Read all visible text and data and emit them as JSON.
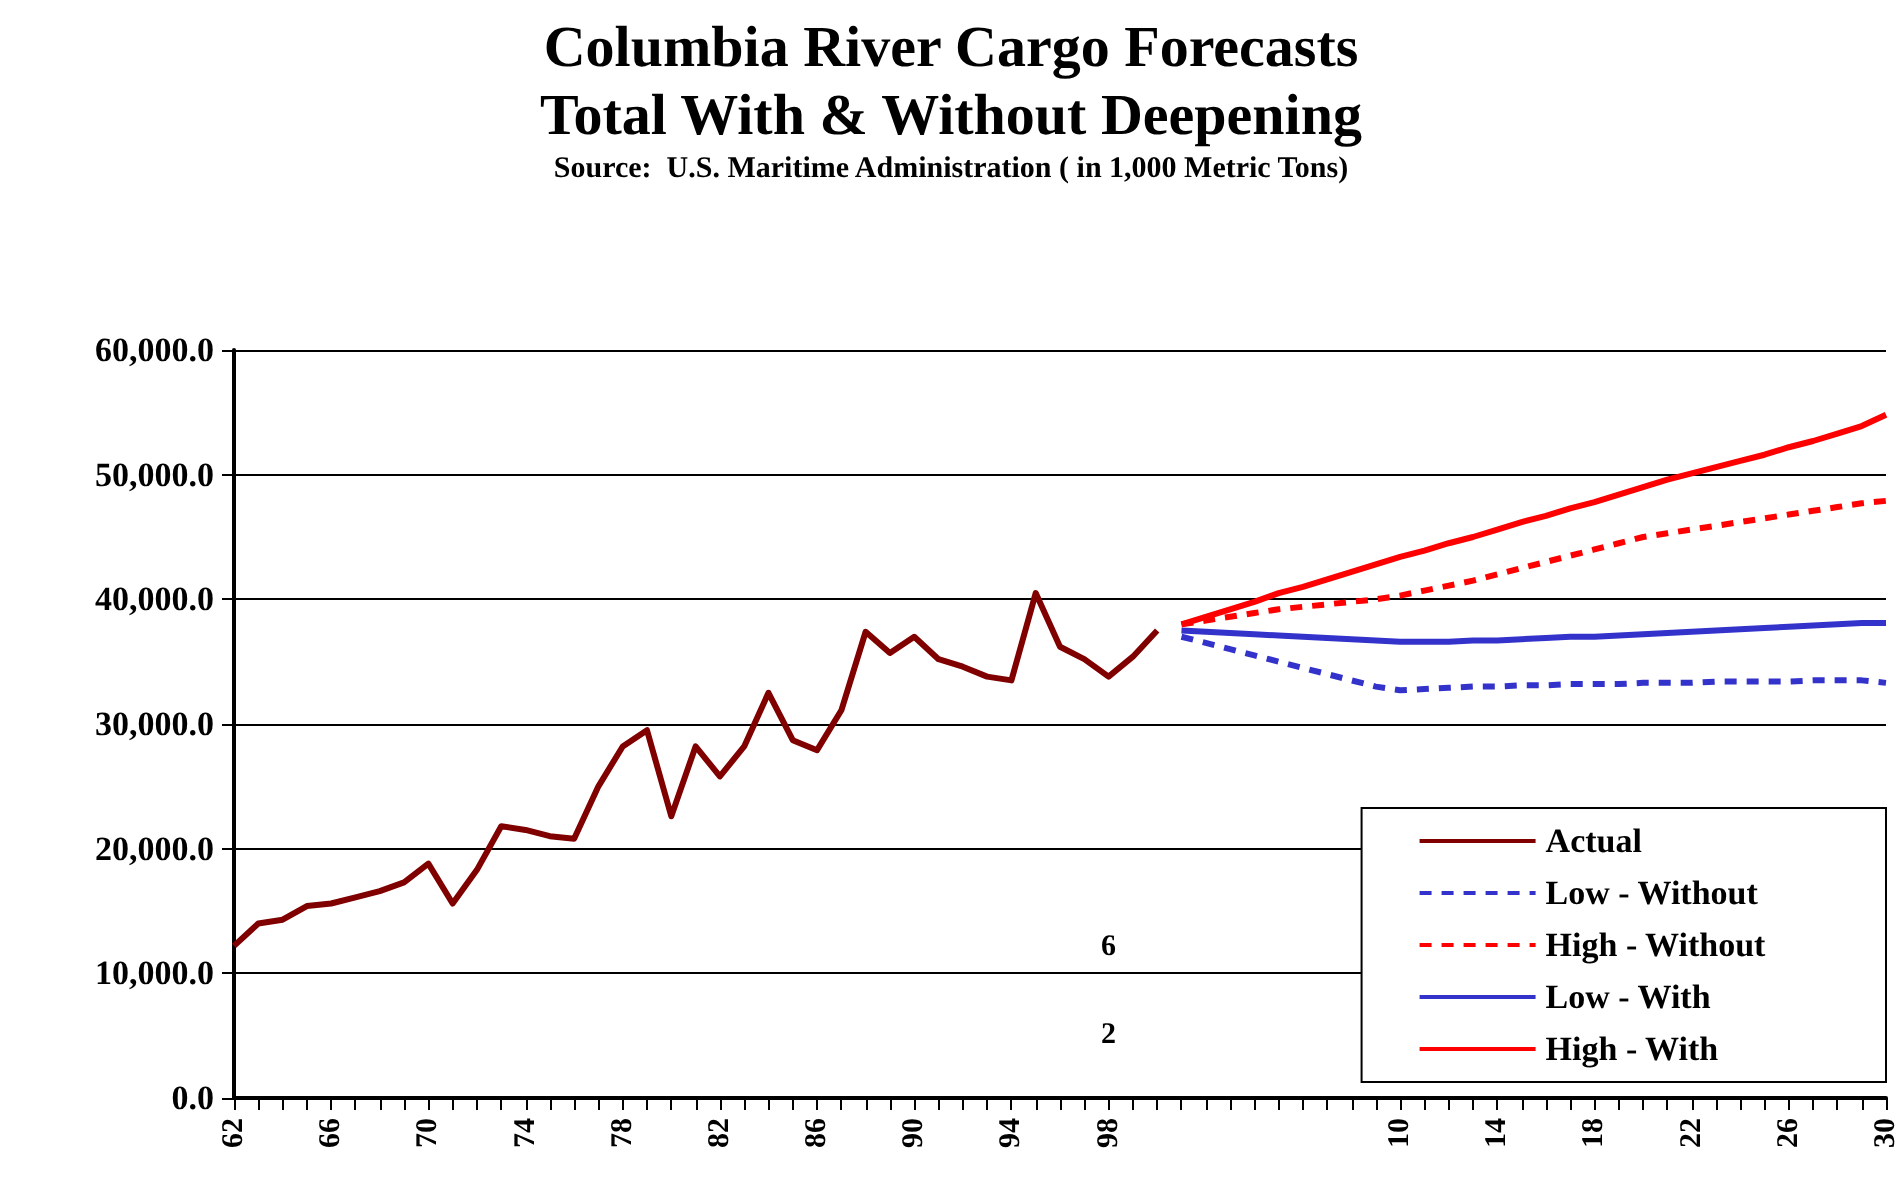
{
  "chart_data": {
    "type": "line",
    "title": "Columbia River Cargo Forecasts\nTotal With & Without Deepening",
    "subtitle": "Source:  U.S. Maritime Administration ( in 1,000 Metric Tons)",
    "categories": [
      "62",
      null,
      null,
      null,
      "66",
      null,
      null,
      null,
      "70",
      null,
      null,
      null,
      "74",
      null,
      null,
      null,
      "78",
      null,
      null,
      null,
      "82",
      null,
      null,
      null,
      "86",
      null,
      null,
      null,
      "90",
      null,
      null,
      null,
      "94",
      null,
      null,
      null,
      "98",
      null,
      null,
      null,
      null,
      null,
      null,
      null,
      null,
      null,
      null,
      null,
      "10",
      null,
      null,
      null,
      "14",
      null,
      null,
      null,
      "18",
      null,
      null,
      null,
      "22",
      null,
      null,
      null,
      "26",
      null,
      null,
      null,
      "30"
    ],
    "series": [
      {
        "name": "Actual",
        "color": "#800000",
        "line_style": "solid",
        "values": [
          12200,
          14000,
          14300,
          15400,
          15600,
          16100,
          16600,
          17300,
          18800,
          15600,
          18300,
          21800,
          21500,
          21000,
          20800,
          25000,
          28200,
          29500,
          22600,
          28200,
          25800,
          28200,
          32500,
          28700,
          27900,
          31100,
          37400,
          35700,
          37000,
          35200,
          34600,
          33800,
          33500,
          40500,
          36200,
          35200,
          33800,
          35400,
          37500,
          null,
          null,
          null,
          null,
          null,
          null,
          null,
          null,
          null,
          null,
          null,
          null,
          null,
          null,
          null,
          null,
          null,
          null,
          null,
          null,
          null,
          null,
          null,
          null,
          null,
          null,
          null,
          null,
          null,
          null
        ]
      },
      {
        "name": "Low - Without",
        "color": "#3333cc",
        "line_style": "dashed",
        "values": [
          null,
          null,
          null,
          null,
          null,
          null,
          null,
          null,
          null,
          null,
          null,
          null,
          null,
          null,
          null,
          null,
          null,
          null,
          null,
          null,
          null,
          null,
          null,
          null,
          null,
          null,
          null,
          null,
          null,
          null,
          null,
          null,
          null,
          null,
          null,
          null,
          null,
          null,
          null,
          37000,
          36500,
          36000,
          35500,
          35000,
          34500,
          34000,
          33500,
          33000,
          32700,
          32800,
          32900,
          33000,
          33000,
          33100,
          33100,
          33200,
          33200,
          33200,
          33300,
          33300,
          33300,
          33400,
          33400,
          33400,
          33400,
          33500,
          33500,
          33500,
          33300
        ]
      },
      {
        "name": "High - Without",
        "color": "#ff0000",
        "line_style": "dashed",
        "values": [
          null,
          null,
          null,
          null,
          null,
          null,
          null,
          null,
          null,
          null,
          null,
          null,
          null,
          null,
          null,
          null,
          null,
          null,
          null,
          null,
          null,
          null,
          null,
          null,
          null,
          null,
          null,
          null,
          null,
          null,
          null,
          null,
          null,
          null,
          null,
          null,
          null,
          null,
          null,
          38000,
          38300,
          38600,
          38900,
          39200,
          39400,
          39600,
          39800,
          40000,
          40300,
          40700,
          41100,
          41500,
          42000,
          42500,
          43000,
          43500,
          44000,
          44500,
          45000,
          45300,
          45600,
          45900,
          46200,
          46500,
          46800,
          47100,
          47400,
          47700,
          47900
        ]
      },
      {
        "name": "Low - With",
        "color": "#3333cc",
        "line_style": "solid",
        "values": [
          null,
          null,
          null,
          null,
          null,
          null,
          null,
          null,
          null,
          null,
          null,
          null,
          null,
          null,
          null,
          null,
          null,
          null,
          null,
          null,
          null,
          null,
          null,
          null,
          null,
          null,
          null,
          null,
          null,
          null,
          null,
          null,
          null,
          null,
          null,
          null,
          null,
          null,
          null,
          37500,
          37400,
          37300,
          37200,
          37100,
          37000,
          36900,
          36800,
          36700,
          36600,
          36600,
          36600,
          36700,
          36700,
          36800,
          36900,
          37000,
          37000,
          37100,
          37200,
          37300,
          37400,
          37500,
          37600,
          37700,
          37800,
          37900,
          38000,
          38100,
          38100
        ]
      },
      {
        "name": "High - With",
        "color": "#ff0000",
        "line_style": "solid",
        "values": [
          null,
          null,
          null,
          null,
          null,
          null,
          null,
          null,
          null,
          null,
          null,
          null,
          null,
          null,
          null,
          null,
          null,
          null,
          null,
          null,
          null,
          null,
          null,
          null,
          null,
          null,
          null,
          null,
          null,
          null,
          null,
          null,
          null,
          null,
          null,
          null,
          null,
          null,
          null,
          38000,
          38600,
          39200,
          39800,
          40500,
          41000,
          41600,
          42200,
          42800,
          43400,
          43900,
          44500,
          45000,
          45600,
          46200,
          46700,
          47300,
          47800,
          48400,
          49000,
          49600,
          50100,
          50600,
          51100,
          51600,
          52200,
          52700,
          53300,
          53900,
          54800
        ]
      }
    ],
    "ylim": [
      0,
      60000
    ],
    "yticks": [
      {
        "value": 0,
        "label": "0.0"
      },
      {
        "value": 10000,
        "label": "10,000.0"
      },
      {
        "value": 20000,
        "label": "20,000.0"
      },
      {
        "value": 30000,
        "label": "30,000.0"
      },
      {
        "value": 40000,
        "label": "40,000.0"
      },
      {
        "value": 50000,
        "label": "50,000.0"
      },
      {
        "value": 60000,
        "label": "60,000.0"
      }
    ],
    "grid": "y",
    "legend": "bottom right",
    "marker": "none",
    "annotations": [
      "6",
      "2"
    ]
  }
}
